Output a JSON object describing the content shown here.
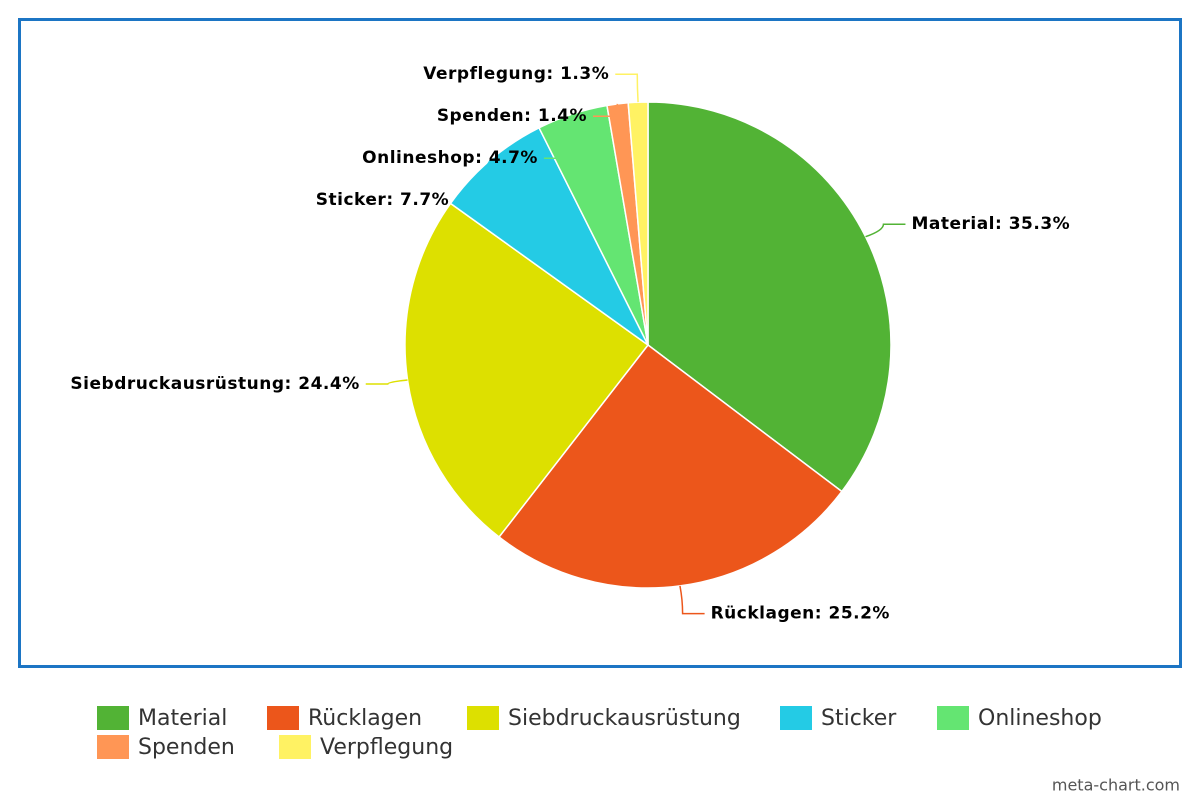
{
  "chart_data": {
    "type": "pie",
    "categories": [
      "Material",
      "Rücklagen",
      "Siebdruckausrüstung",
      "Sticker",
      "Onlineshop",
      "Spenden",
      "Verpflegung"
    ],
    "values": [
      35.3,
      25.2,
      24.4,
      7.7,
      4.7,
      1.4,
      1.3
    ],
    "value_labels": [
      "Material: 35.3%",
      "Rücklagen: 25.2%",
      "Siebdruckausrüstung: 24.4%",
      "Sticker: 7.7%",
      "Onlineshop: 4.7%",
      "Spenden: 1.4%",
      "Verpflegung: 1.3%"
    ],
    "colors": [
      "#52b335",
      "#ec561b",
      "#dde000",
      "#24cbe5",
      "#64e572",
      "#ff9655",
      "#fff263"
    ],
    "watermark": "meta-chart.com"
  }
}
